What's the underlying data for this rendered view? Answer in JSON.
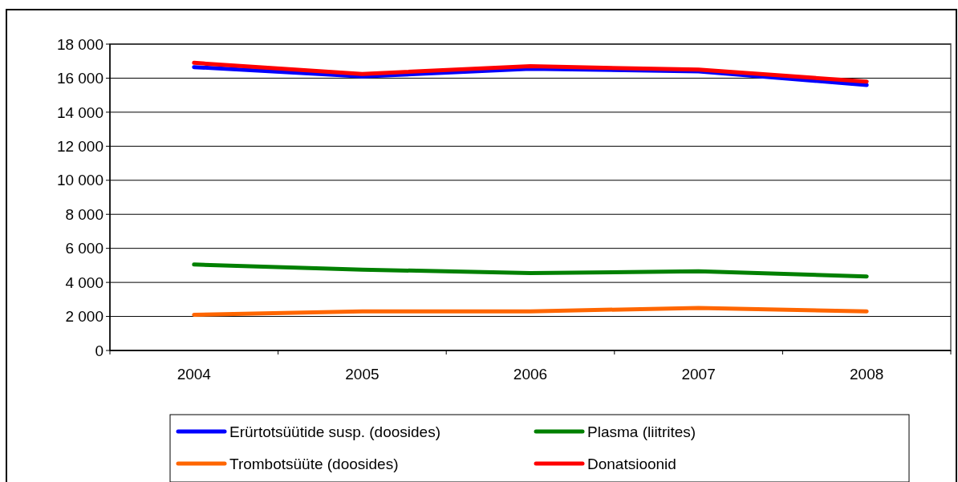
{
  "chart_data": {
    "type": "line",
    "categories": [
      "2004",
      "2005",
      "2006",
      "2007",
      "2008"
    ],
    "series": [
      {
        "name": "Erürtotsüütide susp. (doosides)",
        "color": "#0000ff",
        "values": [
          16650,
          16100,
          16550,
          16400,
          15600
        ]
      },
      {
        "name": "Plasma (liitrites)",
        "color": "#008000",
        "values": [
          5050,
          4750,
          4550,
          4650,
          4350
        ]
      },
      {
        "name": "Trombotsüüte (doosides)",
        "color": "#ff6600",
        "values": [
          2100,
          2300,
          2300,
          2500,
          2300
        ]
      },
      {
        "name": "Donatsioonid",
        "color": "#ff0000",
        "values": [
          16900,
          16250,
          16700,
          16500,
          15800
        ]
      }
    ],
    "ylim": [
      0,
      18000
    ],
    "yticks": [
      0,
      {
        "value": 2000,
        "label": "2 000"
      },
      {
        "value": 4000,
        "label": "4 000"
      },
      {
        "value": 6000,
        "label": "6 000"
      },
      {
        "value": 8000,
        "label": "8 000"
      },
      {
        "value": 10000,
        "label": "10 000"
      },
      {
        "value": 12000,
        "label": "12 000"
      },
      {
        "value": 14000,
        "label": "14 000"
      },
      {
        "value": 16000,
        "label": "16 000"
      },
      {
        "value": 18000,
        "label": "18 000"
      }
    ],
    "grid": "y",
    "legend": "bottom",
    "marker": "none",
    "line_style": "solid"
  }
}
